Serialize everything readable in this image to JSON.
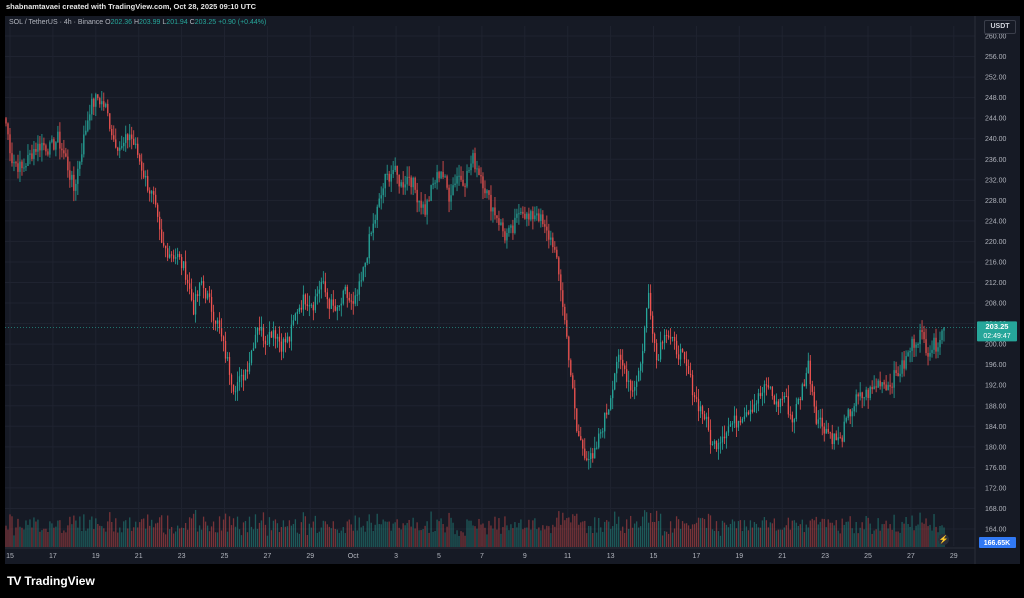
{
  "credit": "shabnamtavaei created with TradingView.com, Oct 28, 2025 09:10 UTC",
  "legend": {
    "symbol": "SOL / TetherUS · 4h · Binance",
    "O": "202.36",
    "H": "203.99",
    "L": "201.94",
    "C": "203.25",
    "change": "+0.90 (+0.44%)"
  },
  "currency_label": "USDT",
  "price_tag": {
    "price": "203.25",
    "countdown": "02:49:47"
  },
  "volume_tag": "166.65K",
  "logo_text": "TradingView",
  "colors": {
    "up": "#26a69a",
    "down": "#ef5350",
    "background": "#161a25",
    "grid": "#1f2330"
  },
  "icons": [
    "tradingview-logo-icon",
    "lightning-icon"
  ],
  "chart_data": {
    "type": "candlestick",
    "interval": "4h",
    "ylim": [
      160,
      260
    ],
    "y_ticks": [
      "260.00",
      "256.00",
      "252.00",
      "248.00",
      "244.00",
      "240.00",
      "236.00",
      "232.00",
      "228.00",
      "224.00",
      "220.00",
      "216.00",
      "212.00",
      "208.00",
      "204.00",
      "200.00",
      "196.00",
      "192.00",
      "188.00",
      "184.00",
      "180.00",
      "176.00",
      "172.00",
      "168.00",
      "164.00"
    ],
    "x_ticks": [
      "15",
      "17",
      "19",
      "21",
      "23",
      "25",
      "27",
      "29",
      "Oct",
      "3",
      "5",
      "7",
      "9",
      "11",
      "13",
      "15",
      "17",
      "19",
      "21",
      "23",
      "25",
      "27",
      "29"
    ],
    "price_path": [
      [
        0,
        243
      ],
      [
        3,
        236
      ],
      [
        8,
        234
      ],
      [
        14,
        238
      ],
      [
        18,
        239
      ],
      [
        22,
        238
      ],
      [
        26,
        240
      ],
      [
        30,
        236
      ],
      [
        34,
        230
      ],
      [
        38,
        238
      ],
      [
        42,
        246
      ],
      [
        46,
        248
      ],
      [
        50,
        246
      ],
      [
        54,
        240
      ],
      [
        58,
        238
      ],
      [
        62,
        241
      ],
      [
        66,
        237
      ],
      [
        70,
        232
      ],
      [
        74,
        228
      ],
      [
        78,
        219
      ],
      [
        82,
        218
      ],
      [
        86,
        217
      ],
      [
        90,
        214
      ],
      [
        94,
        207
      ],
      [
        98,
        212
      ],
      [
        102,
        208
      ],
      [
        106,
        204
      ],
      [
        110,
        198
      ],
      [
        114,
        192
      ],
      [
        118,
        193
      ],
      [
        122,
        197
      ],
      [
        126,
        204
      ],
      [
        130,
        201
      ],
      [
        134,
        203
      ],
      [
        138,
        200
      ],
      [
        142,
        201
      ],
      [
        146,
        207
      ],
      [
        150,
        209
      ],
      [
        154,
        208
      ],
      [
        158,
        212
      ],
      [
        162,
        208
      ],
      [
        166,
        206
      ],
      [
        170,
        210
      ],
      [
        174,
        207
      ],
      [
        178,
        212
      ],
      [
        182,
        220
      ],
      [
        186,
        226
      ],
      [
        190,
        232
      ],
      [
        194,
        234
      ],
      [
        198,
        231
      ],
      [
        202,
        233
      ],
      [
        206,
        229
      ],
      [
        210,
        226
      ],
      [
        214,
        231
      ],
      [
        218,
        234
      ],
      [
        222,
        229
      ],
      [
        226,
        233
      ],
      [
        230,
        232
      ],
      [
        234,
        236
      ],
      [
        238,
        233
      ],
      [
        242,
        228
      ],
      [
        246,
        225
      ],
      [
        250,
        221
      ],
      [
        254,
        222
      ],
      [
        258,
        227
      ],
      [
        262,
        224
      ],
      [
        266,
        226
      ],
      [
        270,
        222
      ],
      [
        274,
        220
      ],
      [
        278,
        211
      ],
      [
        282,
        198
      ],
      [
        286,
        183
      ],
      [
        290,
        179
      ],
      [
        294,
        177
      ],
      [
        298,
        183
      ],
      [
        302,
        188
      ],
      [
        306,
        197
      ],
      [
        310,
        195
      ],
      [
        314,
        191
      ],
      [
        318,
        196
      ],
      [
        322,
        210
      ],
      [
        326,
        197
      ],
      [
        330,
        203
      ],
      [
        334,
        200
      ],
      [
        338,
        198
      ],
      [
        342,
        194
      ],
      [
        346,
        189
      ],
      [
        350,
        186
      ],
      [
        354,
        180
      ],
      [
        358,
        182
      ],
      [
        362,
        184
      ],
      [
        366,
        185
      ],
      [
        370,
        187
      ],
      [
        374,
        188
      ],
      [
        378,
        190
      ],
      [
        382,
        192
      ],
      [
        386,
        188
      ],
      [
        390,
        190
      ],
      [
        394,
        185
      ],
      [
        398,
        190
      ],
      [
        402,
        196
      ],
      [
        406,
        186
      ],
      [
        410,
        184
      ],
      [
        414,
        182
      ],
      [
        418,
        181
      ],
      [
        422,
        186
      ],
      [
        426,
        189
      ],
      [
        430,
        190
      ],
      [
        434,
        191
      ],
      [
        438,
        193
      ],
      [
        442,
        192
      ],
      [
        446,
        194
      ],
      [
        450,
        196
      ],
      [
        454,
        200
      ],
      [
        458,
        202
      ],
      [
        462,
        199
      ],
      [
        466,
        200
      ],
      [
        470,
        203.25
      ]
    ],
    "volume_max": 600
  }
}
